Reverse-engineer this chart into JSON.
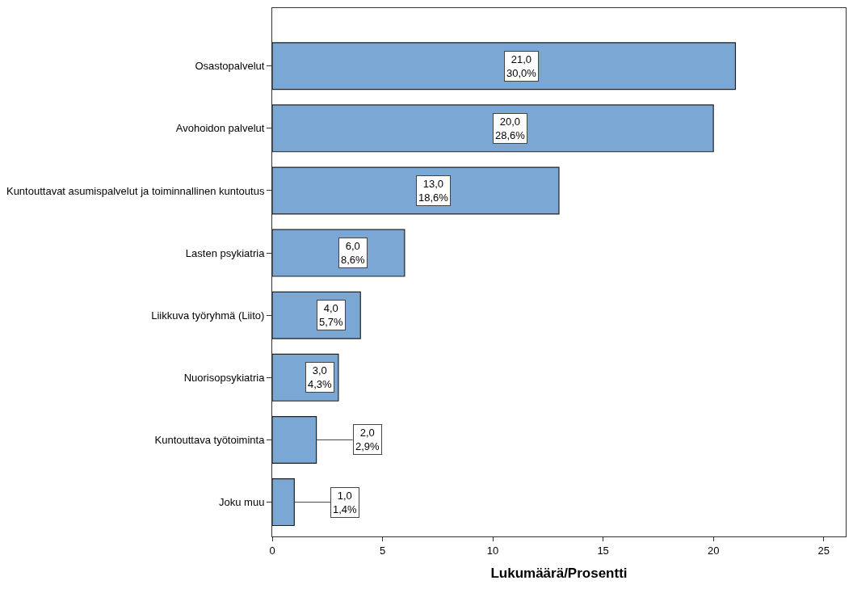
{
  "chart_data": {
    "type": "bar",
    "orientation": "horizontal",
    "xlabel": "Lukumäärä/Prosentti",
    "categories": [
      "Osastopalvelut",
      "Avohoidon palvelut",
      "Kuntouttavat asumispalvelut ja toiminnallinen kuntoutus",
      "Lasten psykiatria",
      "Liikkuva työryhmä (Liito)",
      "Nuorisopsykiatria",
      "Kuntouttava työtoiminta",
      "Joku muu"
    ],
    "values": [
      21,
      20,
      13,
      6,
      4,
      3,
      2,
      1
    ],
    "value_labels": [
      "21,0\n30,0%",
      "20,0\n28,6%",
      "13,0\n18,6%",
      "6,0\n8,6%",
      "4,0\n5,7%",
      "3,0\n4,3%",
      "2,0\n2,9%",
      "1,0\n1,4%"
    ],
    "color": "#7ba7d4",
    "xlim": [
      0,
      26
    ],
    "xticks": [
      0,
      5,
      10,
      15,
      20,
      25
    ]
  }
}
